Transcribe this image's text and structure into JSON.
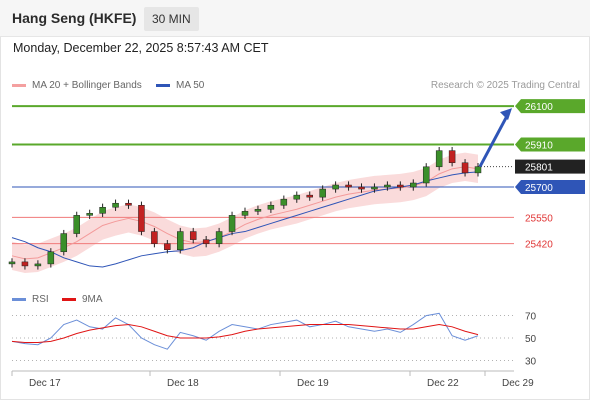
{
  "header": {
    "title": "Hang Seng (HKFE)",
    "timeframe": "30 MIN"
  },
  "timestamp": "Monday, December 22, 2025 8:57:43 AM CET",
  "legend": {
    "ma20": "MA 20 + Bollinger Bands",
    "ma50": "MA 50",
    "credit": "Research © 2025 Trading Central"
  },
  "rsi_legend": {
    "rsi": "RSI",
    "ma": "9MA"
  },
  "colors": {
    "resistance": "#5aa82b",
    "support": "#f07a7a",
    "current": "#222222",
    "pivot": "#2f55b7",
    "rsi": "#6b8fd8",
    "rsi_ma": "#e01515",
    "bands": "#f8c8c8"
  },
  "chart_data": [
    {
      "type": "line",
      "title": "",
      "xlabel": "",
      "ylabel": "",
      "ylim": [
        25280,
        26150
      ],
      "x_ticks": [
        "Dec 17",
        "Dec 18",
        "Dec 19",
        "Dec 22",
        "Dec 29"
      ],
      "levels": [
        {
          "label": "26100",
          "value": 26100,
          "kind": "resistance"
        },
        {
          "label": "25910",
          "value": 25910,
          "kind": "resistance"
        },
        {
          "label": "25801",
          "value": 25801,
          "kind": "current"
        },
        {
          "label": "25700",
          "value": 25700,
          "kind": "pivot"
        },
        {
          "label": "25550",
          "value": 25550,
          "kind": "support"
        },
        {
          "label": "25420",
          "value": 25420,
          "kind": "support"
        }
      ],
      "series": [
        {
          "name": "MA 20 + Bollinger Bands",
          "values": [
            25360,
            25345,
            25350,
            25375,
            25400,
            25430,
            25470,
            25510,
            25530,
            25545,
            25530,
            25505,
            25470,
            25440,
            25425,
            25430,
            25450,
            25480,
            25515,
            25540,
            25560,
            25575,
            25590,
            25610,
            25630,
            25650,
            25665,
            25675,
            25685,
            25690,
            25695,
            25705,
            25725,
            25765,
            25790,
            25800,
            25790
          ]
        },
        {
          "name": "MA 50",
          "values": [
            25450,
            25430,
            25400,
            25380,
            25350,
            25330,
            25310,
            25305,
            25320,
            25340,
            25360,
            25370,
            25380,
            25385,
            25400,
            25430,
            25450,
            25470,
            25480,
            25500,
            25520,
            25540,
            25560,
            25580,
            25600,
            25620,
            25640,
            25660,
            25680,
            25690,
            25700,
            25710,
            25730,
            25745,
            25760,
            25770,
            25775
          ]
        },
        {
          "name": "Price",
          "values": [
            25330,
            25310,
            25320,
            25380,
            25470,
            25560,
            25570,
            25600,
            25620,
            25610,
            25480,
            25420,
            25390,
            25480,
            25440,
            25420,
            25480,
            25560,
            25580,
            25590,
            25610,
            25640,
            25660,
            25650,
            25690,
            25710,
            25700,
            25690,
            25700,
            25710,
            25700,
            25720,
            25800,
            25880,
            25820,
            25770,
            25801
          ]
        }
      ]
    },
    {
      "type": "line",
      "title": "",
      "ylim": [
        25,
        75
      ],
      "y_ticks": [
        "70",
        "50",
        "30"
      ],
      "series": [
        {
          "name": "RSI",
          "values": [
            47,
            45,
            44,
            50,
            62,
            66,
            60,
            58,
            68,
            62,
            50,
            44,
            40,
            55,
            52,
            48,
            56,
            62,
            60,
            58,
            62,
            64,
            66,
            60,
            62,
            65,
            60,
            58,
            56,
            58,
            55,
            62,
            70,
            72,
            52,
            48,
            52
          ]
        },
        {
          "name": "9MA",
          "values": [
            47,
            46,
            46,
            47,
            50,
            54,
            57,
            59,
            61,
            62,
            60,
            56,
            52,
            50,
            50,
            50,
            51,
            53,
            56,
            58,
            59,
            60,
            61,
            62,
            62,
            62,
            62,
            61,
            60,
            59,
            58,
            58,
            60,
            62,
            60,
            56,
            53
          ]
        }
      ]
    }
  ]
}
